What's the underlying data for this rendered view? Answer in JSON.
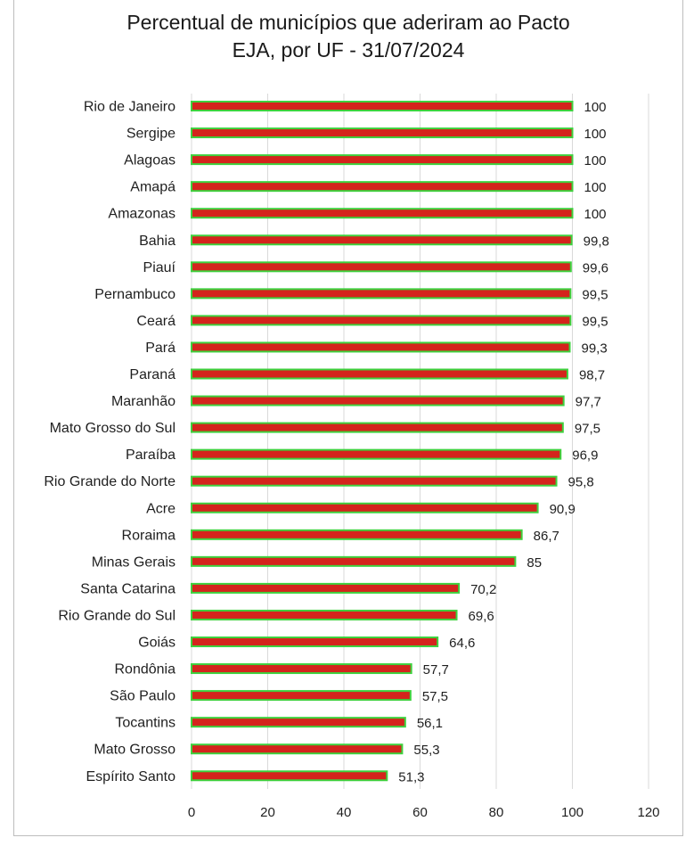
{
  "chart_data": {
    "type": "bar",
    "orientation": "horizontal",
    "title": "Percentual de municípios que aderiram ao Pacto EJA, por UF - 31/07/2024",
    "title_lines": [
      "Percentual de municípios que aderiram ao Pacto",
      "EJA, por UF - 31/07/2024"
    ],
    "categories": [
      "Rio de Janeiro",
      "Sergipe",
      "Alagoas",
      "Amapá",
      "Amazonas",
      "Bahia",
      "Piauí",
      "Pernambuco",
      "Ceará",
      "Pará",
      "Paraná",
      "Maranhão",
      "Mato Grosso do Sul",
      "Paraíba",
      "Rio Grande do Norte",
      "Acre",
      "Roraima",
      "Minas Gerais",
      "Santa Catarina",
      "Rio Grande do Sul",
      "Goiás",
      "Rondônia",
      "São Paulo",
      "Tocantins",
      "Mato Grosso",
      "Espírito Santo"
    ],
    "values": [
      100,
      100,
      100,
      100,
      100,
      99.8,
      99.6,
      99.5,
      99.5,
      99.3,
      98.7,
      97.7,
      97.5,
      96.9,
      95.8,
      90.9,
      86.7,
      85,
      70.2,
      69.6,
      64.6,
      57.7,
      57.5,
      56.1,
      55.3,
      51.3
    ],
    "value_labels": [
      "100",
      "100",
      "100",
      "100",
      "100",
      "99,8",
      "99,6",
      "99,5",
      "99,5",
      "99,3",
      "98,7",
      "97,7",
      "97,5",
      "96,9",
      "95,8",
      "90,9",
      "86,7",
      "85",
      "70,2",
      "69,6",
      "64,6",
      "57,7",
      "57,5",
      "56,1",
      "55,3",
      "51,3"
    ],
    "xlim": [
      0,
      120
    ],
    "xticks": [
      "0",
      "20",
      "40",
      "60",
      "80",
      "100",
      "120"
    ],
    "grid": "vertical",
    "legend": "none",
    "bar_fill": "#d4241c",
    "bar_border": "#3ed13e",
    "grid_color": "#d9d9d9"
  }
}
